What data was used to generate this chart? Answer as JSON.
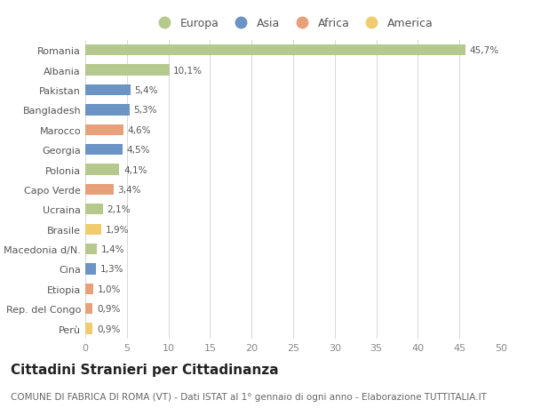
{
  "countries": [
    "Romania",
    "Albania",
    "Pakistan",
    "Bangladesh",
    "Marocco",
    "Georgia",
    "Polonia",
    "Capo Verde",
    "Ucraina",
    "Brasile",
    "Macedonia d/N.",
    "Cina",
    "Etiopia",
    "Rep. del Congo",
    "Perù"
  ],
  "values": [
    45.7,
    10.1,
    5.4,
    5.3,
    4.6,
    4.5,
    4.1,
    3.4,
    2.1,
    1.9,
    1.4,
    1.3,
    1.0,
    0.9,
    0.9
  ],
  "labels": [
    "45,7%",
    "10,1%",
    "5,4%",
    "5,3%",
    "4,6%",
    "4,5%",
    "4,1%",
    "3,4%",
    "2,1%",
    "1,9%",
    "1,4%",
    "1,3%",
    "1,0%",
    "0,9%",
    "0,9%"
  ],
  "continents": [
    "Europa",
    "Europa",
    "Asia",
    "Asia",
    "Africa",
    "Asia",
    "Europa",
    "Africa",
    "Europa",
    "America",
    "Europa",
    "Asia",
    "Africa",
    "Africa",
    "America"
  ],
  "colors": {
    "Europa": "#b5c98e",
    "Asia": "#6b93c4",
    "Africa": "#e8a07a",
    "America": "#f0cc6e"
  },
  "legend_order": [
    "Europa",
    "Asia",
    "Africa",
    "America"
  ],
  "xlim": [
    0,
    50
  ],
  "xticks": [
    0,
    5,
    10,
    15,
    20,
    25,
    30,
    35,
    40,
    45,
    50
  ],
  "title": "Cittadini Stranieri per Cittadinanza",
  "subtitle": "COMUNE DI FABRICA DI ROMA (VT) - Dati ISTAT al 1° gennaio di ogni anno - Elaborazione TUTTITALIA.IT",
  "bg_color": "#ffffff",
  "grid_color": "#d8d8d8",
  "bar_height": 0.55,
  "label_fontsize": 7.5,
  "ytick_fontsize": 8.0,
  "xtick_fontsize": 8.0,
  "title_fontsize": 11,
  "subtitle_fontsize": 7.5,
  "legend_fontsize": 9
}
